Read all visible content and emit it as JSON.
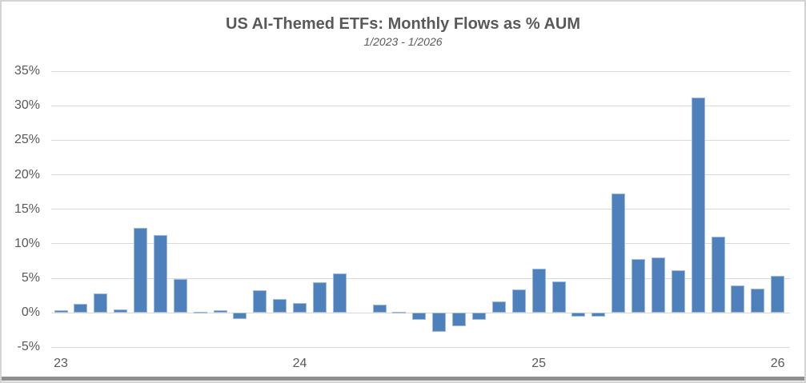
{
  "chart_data": {
    "type": "bar",
    "title": "US AI-Themed ETFs: Monthly Flows as % AUM",
    "subtitle": "1/2023 - 1/2026",
    "xlabel": "",
    "ylabel": "",
    "ylim": [
      -5,
      35
    ],
    "grid": true,
    "legend": false,
    "bar_color": "#4e80bc",
    "bar_border_color": "#9fbcdc",
    "gridline_color": "#d9d9d9",
    "text_color": "#595959",
    "y_tick_labels": [
      "35%",
      "30%",
      "25%",
      "20%",
      "15%",
      "10%",
      "5%",
      "0%",
      "-5%"
    ],
    "y_tick_values": [
      35,
      30,
      25,
      20,
      15,
      10,
      5,
      0,
      -5
    ],
    "x_tick_labels": [
      "23",
      "24",
      "25",
      "26"
    ],
    "x_tick_month_indices": [
      0,
      12,
      24,
      36
    ],
    "categories": [
      "1/23",
      "2/23",
      "3/23",
      "4/23",
      "5/23",
      "6/23",
      "7/23",
      "8/23",
      "9/23",
      "10/23",
      "11/23",
      "12/23",
      "1/24",
      "2/24",
      "3/24",
      "4/24",
      "5/24",
      "6/24",
      "7/24",
      "8/24",
      "9/24",
      "10/24",
      "11/24",
      "12/24",
      "1/25",
      "2/25",
      "3/25",
      "4/25",
      "5/25",
      "6/25",
      "7/25",
      "8/25",
      "9/25",
      "10/25",
      "11/25",
      "12/25",
      "1/26"
    ],
    "values": [
      0.4,
      1.3,
      2.8,
      0.5,
      12.3,
      11.3,
      4.9,
      0.2,
      0.4,
      -0.9,
      3.3,
      2.0,
      1.4,
      4.4,
      5.7,
      0.0,
      1.2,
      0.1,
      -1.0,
      -2.7,
      -1.9,
      -1.0,
      1.7,
      3.4,
      6.4,
      4.5,
      -0.6,
      -0.5,
      17.3,
      7.8,
      8.0,
      6.2,
      31.2,
      11.0,
      4.0,
      3.5,
      5.4
    ]
  }
}
